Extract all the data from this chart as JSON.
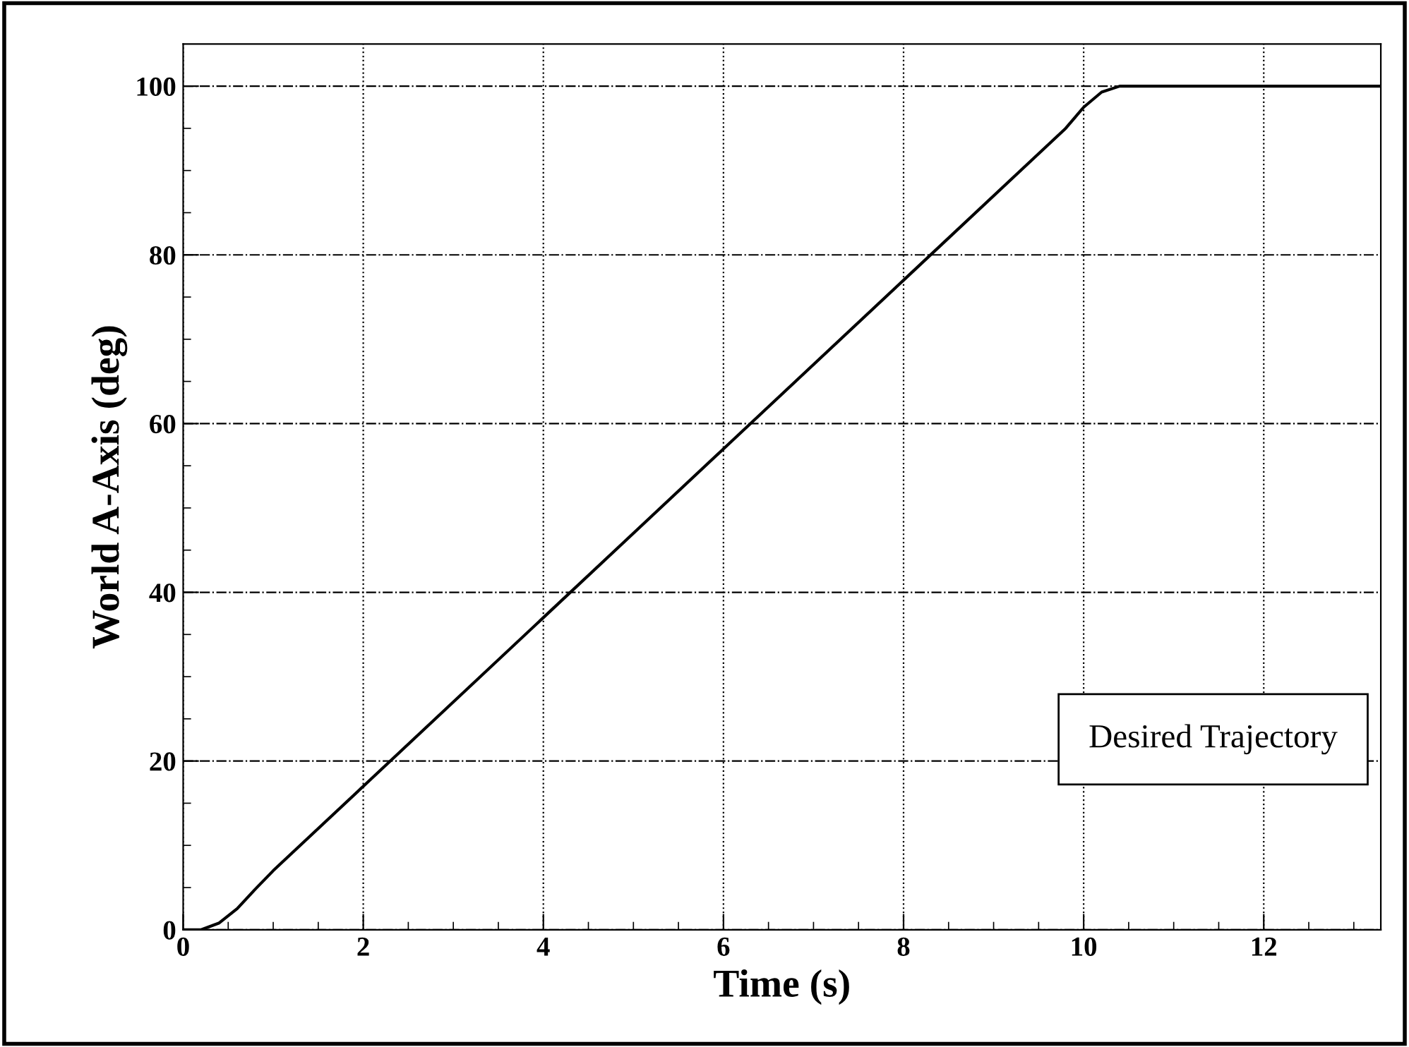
{
  "chart_data": {
    "type": "line",
    "xlabel": "Time (s)",
    "ylabel": "World A-Axis (deg)",
    "annotations": [
      "Desired Trajectory"
    ],
    "x": [
      0,
      0.2,
      0.4,
      0.6,
      0.8,
      1,
      2,
      4,
      6,
      8,
      9.8,
      10,
      10.2,
      10.4,
      13.3
    ],
    "series": [
      {
        "color": "#000000",
        "values": [
          0,
          0,
          0.8,
          2.5,
          4.8,
          7,
          17,
          37,
          57,
          77,
          95,
          97.5,
          99.3,
          100,
          100
        ]
      }
    ],
    "xlim": [
      0,
      13.3
    ],
    "ylim": [
      0,
      105
    ],
    "xticks": [
      0,
      {
        "value": 0.5,
        "label": null
      },
      2,
      {
        "value": 1,
        "label": null
      },
      {
        "value": 1.5,
        "label": null
      },
      {
        "value": 2.5,
        "label": null
      },
      {
        "value": 3,
        "label": null
      },
      {
        "value": 3.5,
        "label": null
      },
      4,
      {
        "value": 4.5,
        "label": null
      },
      {
        "value": 5,
        "label": null
      },
      {
        "value": 5.5,
        "label": null
      },
      6,
      {
        "value": 6.5,
        "label": null
      },
      {
        "value": 7,
        "label": null
      },
      {
        "value": 7.5,
        "label": null
      },
      8,
      {
        "value": 8.5,
        "label": null
      },
      {
        "value": 9,
        "label": null
      },
      {
        "value": 9.5,
        "label": null
      },
      10,
      {
        "value": 10.5,
        "label": null
      },
      {
        "value": 11,
        "label": null
      },
      {
        "value": 11.5,
        "label": null
      },
      12,
      {
        "value": 12.5,
        "label": null
      },
      {
        "value": 13,
        "label": null
      }
    ],
    "yticks": [
      0,
      {
        "value": 5,
        "label": null
      },
      {
        "value": 10,
        "label": null
      },
      {
        "value": 15,
        "label": null
      },
      20,
      {
        "value": 25,
        "label": null
      },
      {
        "value": 30,
        "label": null
      },
      {
        "value": 35,
        "label": null
      },
      40,
      {
        "value": 45,
        "label": null
      },
      {
        "value": 50,
        "label": null
      },
      {
        "value": 55,
        "label": null
      },
      60,
      {
        "value": 65,
        "label": null
      },
      {
        "value": 70,
        "label": null
      },
      {
        "value": 75,
        "label": null
      },
      80,
      {
        "value": 85,
        "label": null
      },
      {
        "value": 90,
        "label": null
      },
      {
        "value": 95,
        "label": null
      },
      100
    ],
    "grid": true,
    "legend": false,
    "marker": "none",
    "line_style": "solid"
  }
}
